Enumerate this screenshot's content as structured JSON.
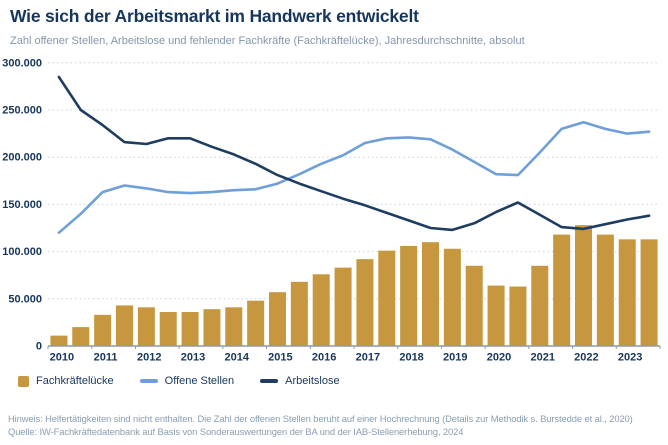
{
  "header": {
    "title": "Wie sich der Arbeitsmarkt im Handwerk entwickelt",
    "subtitle": "Zahl offener Stellen, Arbeitslose und fehlender Fachkräfte (Fachkräftelücke), Jahresdurchschnitte, absolut"
  },
  "legend": [
    {
      "label": "Fachkräftelücke",
      "marker": "square",
      "color": "#c6973f"
    },
    {
      "label": "Offene Stellen",
      "marker": "line",
      "color": "#6f9fd8"
    },
    {
      "label": "Arbeitslose",
      "marker": "line",
      "color": "#1f3d60"
    }
  ],
  "footer": {
    "line1": "Hinweis: Helfertätigkeiten sind nicht enthalten. Die Zahl der offenen Stellen beruht auf einer Hochrechnung (Details zur Methodik s. Burstedde et al., 2020)",
    "line2": "Quelle: IW-Fachkräftedatenbank auf Basis von Sonderauswertungen der BA und der IAB-Stellenerhebung, 2024"
  },
  "chart_data": {
    "type": "bar+line",
    "x_unit": "half-year values, two per year",
    "years": [
      "2010",
      "2011",
      "2012",
      "2013",
      "2014",
      "2015",
      "2016",
      "2017",
      "2018",
      "2019",
      "2020",
      "2021",
      "2022",
      "2023"
    ],
    "categories": [
      "2010-H1",
      "2010-H2",
      "2011-H1",
      "2011-H2",
      "2012-H1",
      "2012-H2",
      "2013-H1",
      "2013-H2",
      "2014-H1",
      "2014-H2",
      "2015-H1",
      "2015-H2",
      "2016-H1",
      "2016-H2",
      "2017-H1",
      "2017-H2",
      "2018-H1",
      "2018-H2",
      "2019-H1",
      "2019-H2",
      "2020-H1",
      "2020-H2",
      "2021-H1",
      "2021-H2",
      "2022-H1",
      "2022-H2",
      "2023-H1",
      "2023-H2"
    ],
    "series": [
      {
        "name": "Fachkräftelücke",
        "type": "bar",
        "color": "#c6973f",
        "values": [
          11000,
          20000,
          33000,
          43000,
          41000,
          36000,
          36000,
          39000,
          41000,
          48000,
          57000,
          68000,
          76000,
          83000,
          92000,
          101000,
          106000,
          110000,
          103000,
          85000,
          64000,
          63000,
          85000,
          118000,
          128000,
          118000,
          113000,
          113000
        ]
      },
      {
        "name": "Offene Stellen",
        "type": "line",
        "color": "#6f9fd8",
        "values": [
          120000,
          140000,
          163000,
          170000,
          167000,
          163000,
          162000,
          163000,
          165000,
          166000,
          172000,
          182000,
          193000,
          202000,
          215000,
          220000,
          221000,
          219000,
          208000,
          195000,
          182000,
          181000,
          205000,
          230000,
          237000,
          230000,
          225000,
          227000
        ]
      },
      {
        "name": "Arbeitslose",
        "type": "line",
        "color": "#1f3d60",
        "values": [
          285000,
          250000,
          234000,
          216000,
          214000,
          220000,
          220000,
          211000,
          203000,
          193000,
          181000,
          172000,
          164000,
          156000,
          149000,
          141000,
          133000,
          125000,
          123000,
          130000,
          142000,
          152000,
          139000,
          126000,
          124000,
          129000,
          134000,
          138000
        ]
      }
    ],
    "ylim": [
      0,
      300000
    ],
    "ytick_step": 50000,
    "ytick_values": [
      0,
      50000,
      100000,
      150000,
      200000,
      250000,
      300000
    ],
    "ytick_labels": [
      "0",
      "50.000",
      "100.000",
      "150.000",
      "200.000",
      "250.000",
      "300.000"
    ],
    "grid": "horizontal dotted",
    "legend_position": "bottom",
    "axis_label_color": "#16365c",
    "gridline_color": "#c7d3e0",
    "baseline_color": "#8f99a4"
  }
}
